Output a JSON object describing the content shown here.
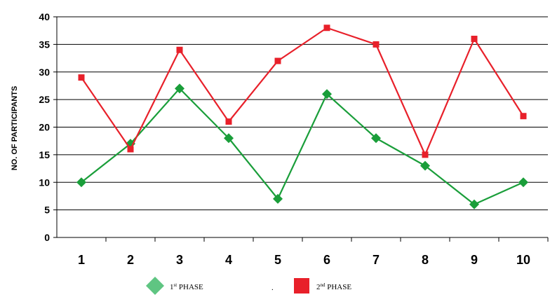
{
  "chart_data": {
    "type": "line",
    "title": "",
    "xlabel": "",
    "ylabel": "NO. OF PARTICIPANTS",
    "categories": [
      "1",
      "2",
      "3",
      "4",
      "5",
      "6",
      "7",
      "8",
      "9",
      "10"
    ],
    "ylim": [
      0,
      40
    ],
    "yticks": [
      "0",
      "5",
      "10",
      "15",
      "20",
      "25",
      "30",
      "35",
      "40"
    ],
    "grid": "horizontal",
    "legend_position": "bottom",
    "series": [
      {
        "name": "1st PHASE",
        "legend_base": "1",
        "legend_sup": "st",
        "legend_rest": " PHASE",
        "marker": "diamond",
        "color": "#1a9e3a",
        "legend_color": "#5fc582",
        "values": [
          10,
          17,
          27,
          18,
          7,
          26,
          18,
          13,
          6,
          10
        ]
      },
      {
        "name": "2nd PHASE",
        "legend_base": "2",
        "legend_sup": "nd",
        "legend_rest": " PHASE",
        "marker": "square",
        "color": "#e8202a",
        "legend_color": "#e8202a",
        "values": [
          29,
          16,
          34,
          21,
          32,
          38,
          35,
          15,
          36,
          22
        ]
      }
    ],
    "legend_separator": "."
  }
}
